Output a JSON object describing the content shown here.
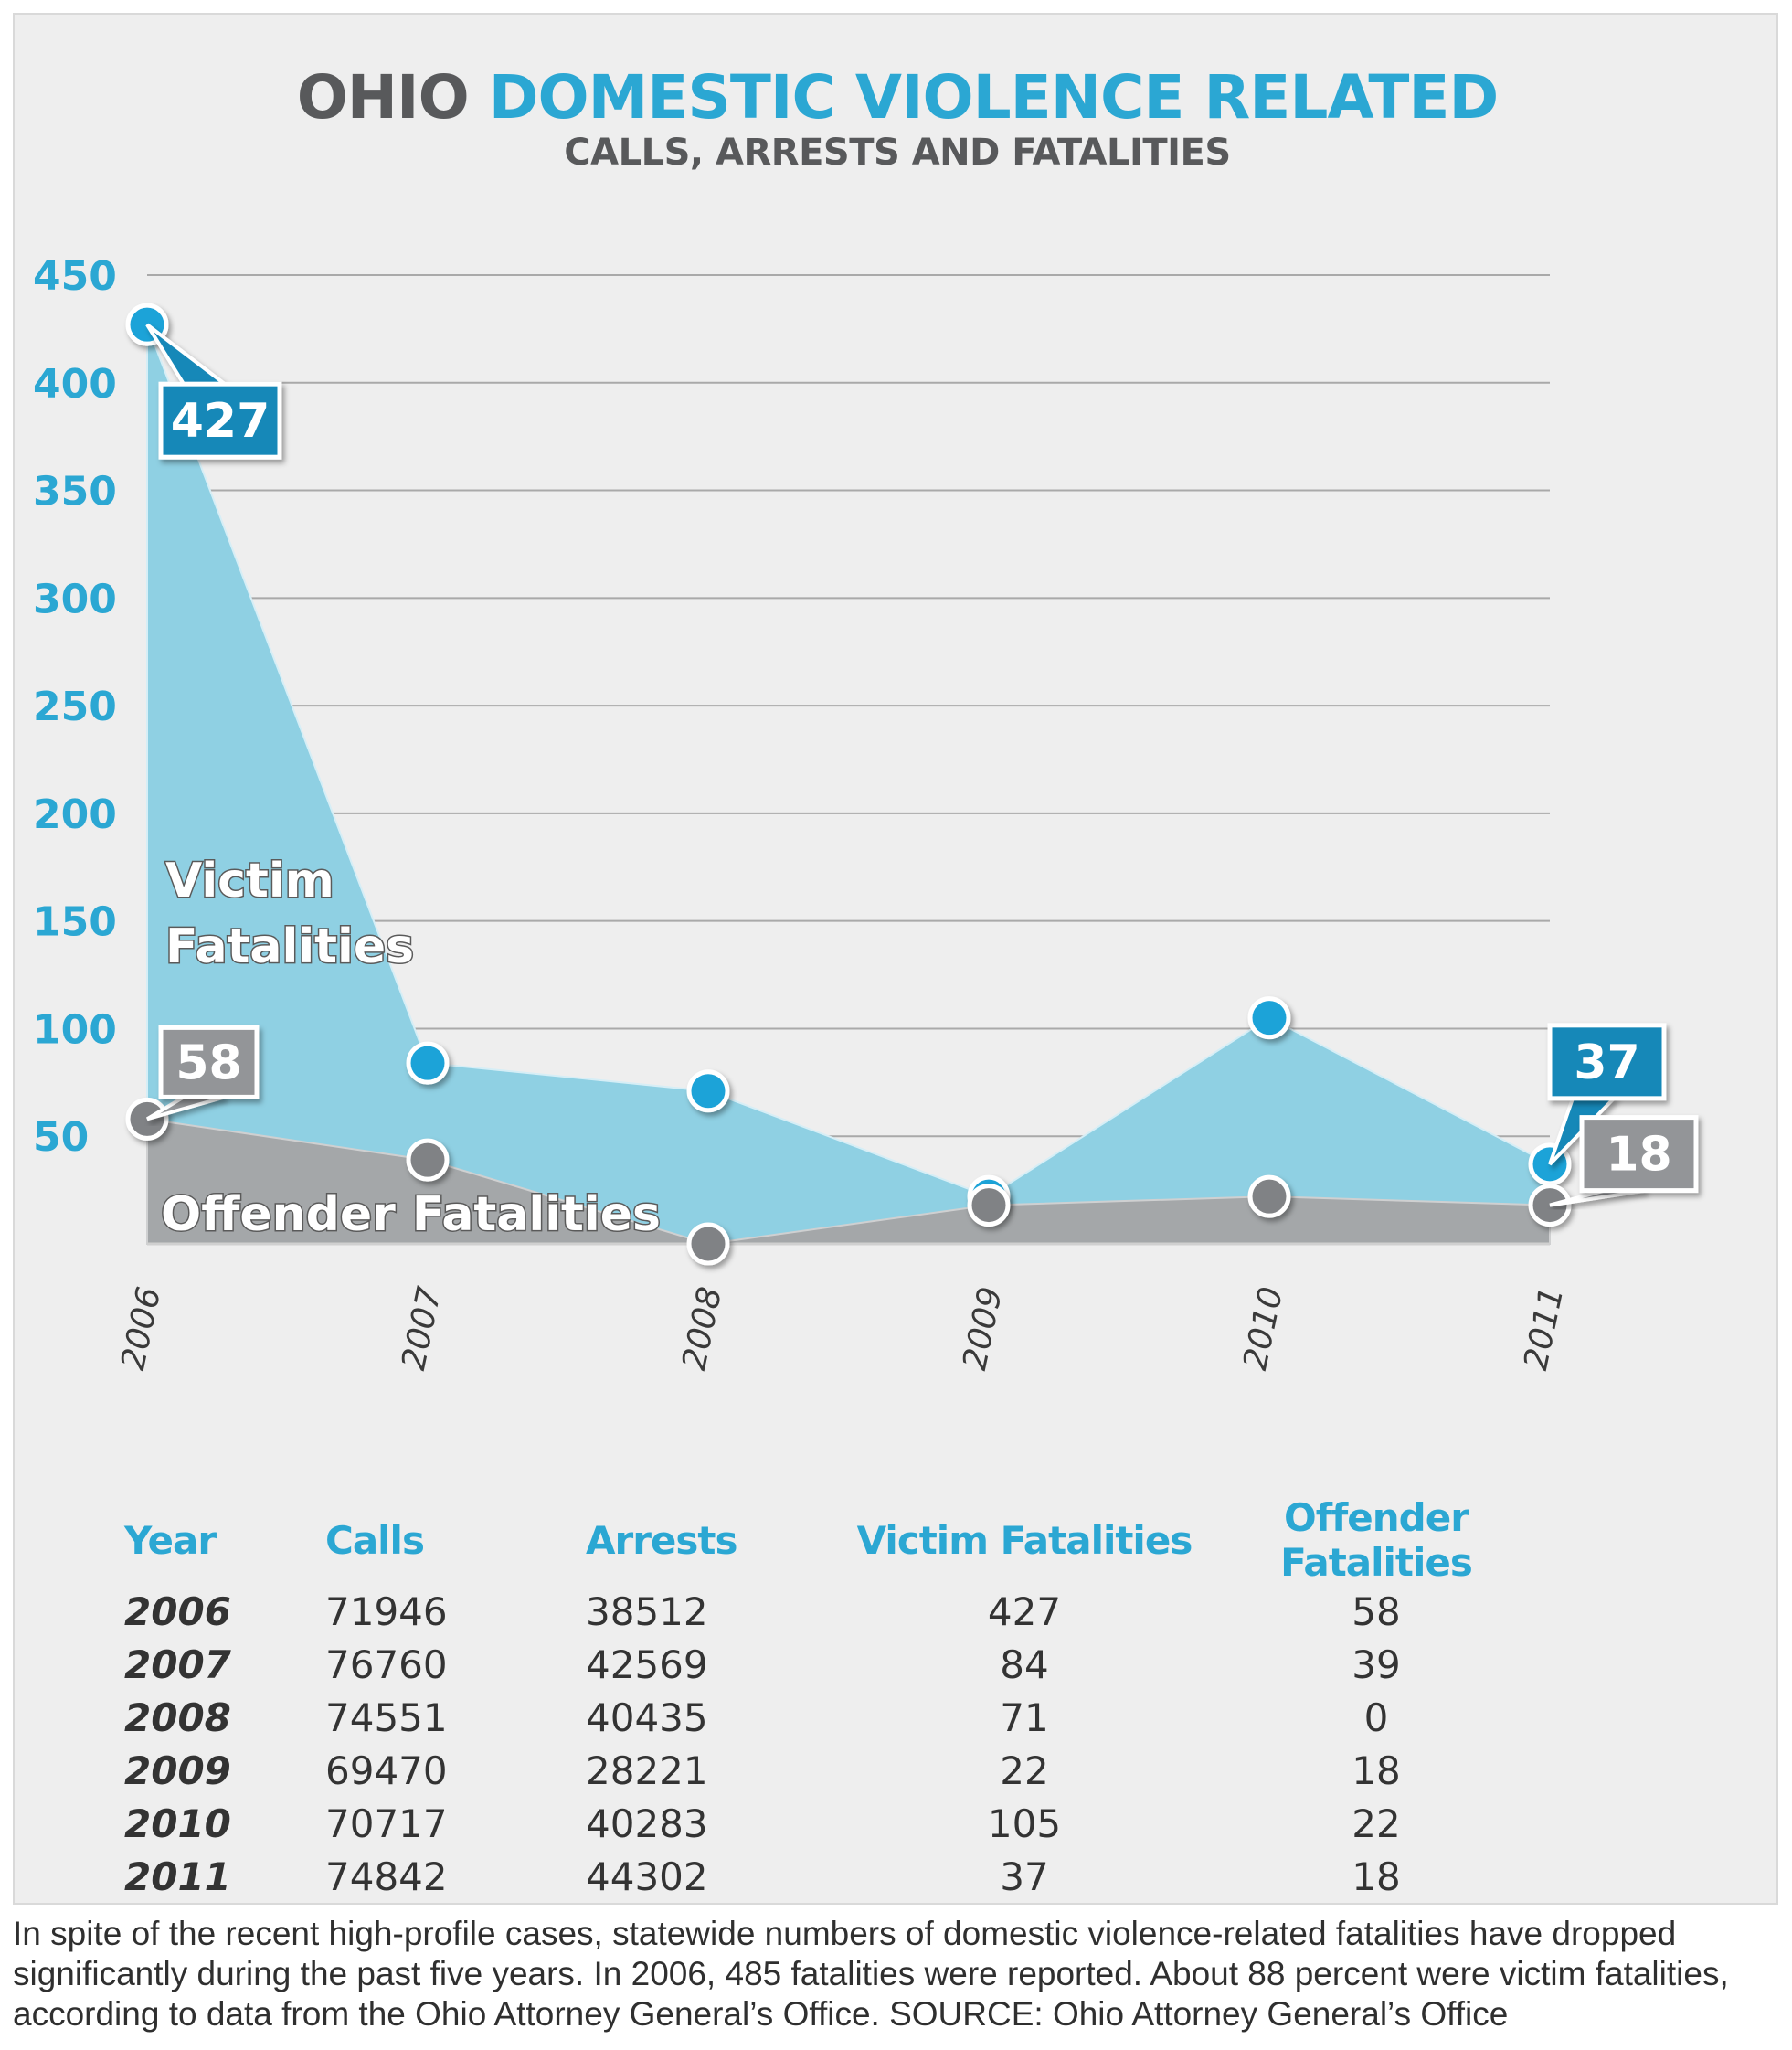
{
  "title": {
    "prefix": "OHIO",
    "accent": "DOMESTIC VIOLENCE RELATED",
    "subtitle": "CALLS, ARRESTS AND FATALITIES"
  },
  "colors": {
    "victim_fill": "#8fd0e3",
    "victim_dot": "#1ea3d8",
    "victim_callout": "#1288b8",
    "offender_fill": "#a4a7a9",
    "offender_dot": "#808285",
    "offender_callout": "#939598",
    "accent": "#2ba7d3",
    "gridline": "#a9a9a9"
  },
  "chart_data": {
    "type": "area",
    "title": "OHIO DOMESTIC VIOLENCE RELATED",
    "subtitle": "CALLS, ARRESTS AND FATALITIES",
    "categories": [
      "2006",
      "2007",
      "2008",
      "2009",
      "2010",
      "2011"
    ],
    "yticks": [
      50,
      100,
      150,
      200,
      250,
      300,
      350,
      400,
      450
    ],
    "ylim": [
      0,
      450
    ],
    "series": [
      {
        "name": "Victim Fatalities",
        "label_lines": [
          "Victim",
          "Fatalities"
        ],
        "values": [
          427,
          84,
          71,
          22,
          105,
          37
        ]
      },
      {
        "name": "Offender Fatalities",
        "label_lines": [
          "Offender Fatalities"
        ],
        "values": [
          58,
          39,
          0,
          18,
          22,
          18
        ]
      }
    ],
    "annotations": [
      {
        "series": 0,
        "index": 0,
        "text": "427"
      },
      {
        "series": 1,
        "index": 0,
        "text": "58"
      },
      {
        "series": 0,
        "index": 5,
        "text": "37"
      },
      {
        "series": 1,
        "index": 5,
        "text": "18"
      }
    ],
    "table": {
      "columns": [
        "Year",
        "Calls",
        "Arrests",
        "Victim Fatalities",
        "Offender Fatalities"
      ],
      "rows": [
        [
          "2006",
          "71946",
          "38512",
          "427",
          "58"
        ],
        [
          "2007",
          "76760",
          "42569",
          "84",
          "39"
        ],
        [
          "2008",
          "74551",
          "40435",
          "71",
          "0"
        ],
        [
          "2009",
          "69470",
          "28221",
          "22",
          "18"
        ],
        [
          "2010",
          "70717",
          "40283",
          "105",
          "22"
        ],
        [
          "2011",
          "74842",
          "44302",
          "37",
          "18"
        ]
      ]
    }
  },
  "caption": "In spite of the recent high-profile cases, statewide numbers of domestic violence-related fatalities have dropped significantly during the past five years. In 2006, 485 fatalities were reported. About 88 percent were victim fatalities, according to data from the Ohio Attorney General’s Office. SOURCE: Ohio Attorney General’s Office"
}
